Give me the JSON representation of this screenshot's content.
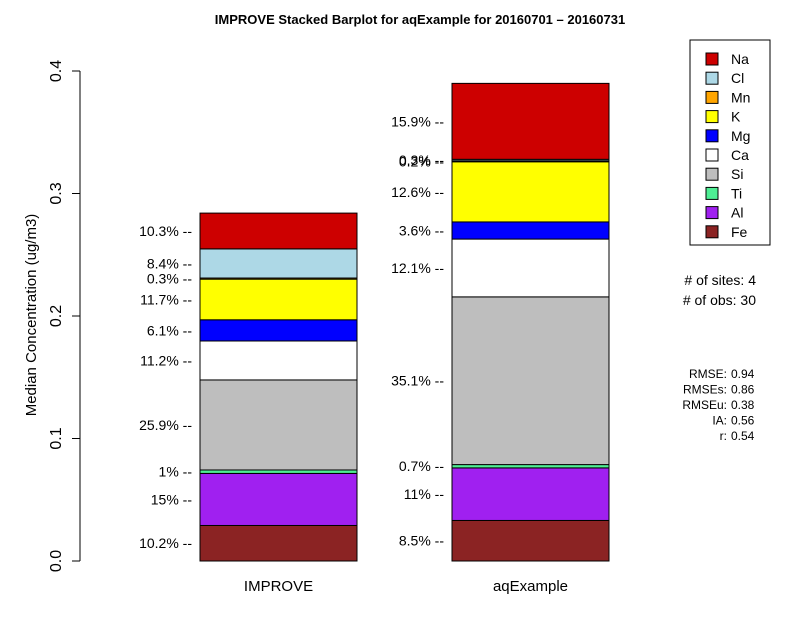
{
  "chart_data": {
    "type": "bar",
    "stacked": true,
    "title": "IMPROVE Stacked Barplot for aqExample for 20160701 – 20160731",
    "ylabel": "Median Concentration (ug/m3)",
    "xlabel": "",
    "ylim": [
      0,
      0.4
    ],
    "yticks": [
      "0.0",
      "0.1",
      "0.2",
      "0.3",
      "0.4"
    ],
    "categories": [
      "IMPROVE",
      "aqExample"
    ],
    "series": [
      {
        "name": "Fe",
        "color": "#8B2323",
        "values": [
          0.029,
          0.0331
        ],
        "labels": [
          "10.2% --",
          "8.5% --"
        ]
      },
      {
        "name": "Al",
        "color": "#A020F0",
        "values": [
          0.0425,
          0.0429
        ],
        "labels": [
          "15% --",
          "11% --"
        ]
      },
      {
        "name": "Ti",
        "color": "#4EEE94",
        "values": [
          0.0028,
          0.0027
        ],
        "labels": [
          "1% --",
          "0.7% --"
        ]
      },
      {
        "name": "Si",
        "color": "#BEBEBE",
        "values": [
          0.0735,
          0.1369
        ],
        "labels": [
          "25.9% --",
          "35.1% --"
        ]
      },
      {
        "name": "Ca",
        "color": "#FFFFFF",
        "values": [
          0.0318,
          0.0472
        ],
        "labels": [
          "11.2% --",
          "12.1% --"
        ]
      },
      {
        "name": "Mg",
        "color": "#0000FF",
        "values": [
          0.0173,
          0.014
        ],
        "labels": [
          "6.1% --",
          "3.6% --"
        ]
      },
      {
        "name": "K",
        "color": "#FFFF00",
        "values": [
          0.0332,
          0.0491
        ],
        "labels": [
          "11.7% --",
          "12.6% --"
        ]
      },
      {
        "name": "Mn",
        "color": "#FFA500",
        "values": [
          0.0009,
          0.0008
        ],
        "labels": [
          "0.3% --",
          "0.2% --"
        ]
      },
      {
        "name": "Cl",
        "color": "#ADD8E6",
        "values": [
          0.0238,
          0.0012
        ],
        "labels": [
          "8.4% --",
          "0.3% --"
        ]
      },
      {
        "name": "Na",
        "color": "#CD0000",
        "values": [
          0.0292,
          0.062
        ],
        "labels": [
          "10.3% --",
          "15.9% --"
        ]
      }
    ],
    "legend": {
      "placement": "top-right",
      "order": [
        "Na",
        "Cl",
        "Mn",
        "K",
        "Mg",
        "Ca",
        "Si",
        "Ti",
        "Al",
        "Fe"
      ]
    }
  },
  "info": {
    "sites": "# of sites: 4",
    "obs": "# of obs: 30"
  },
  "stats": [
    {
      "label": "RMSE:",
      "value": "0.94"
    },
    {
      "label": "RMSEs:",
      "value": "0.86"
    },
    {
      "label": "RMSEu:",
      "value": "0.38"
    },
    {
      "label": "IA:",
      "value": "0.56"
    },
    {
      "label": "r:",
      "value": "0.54"
    }
  ]
}
